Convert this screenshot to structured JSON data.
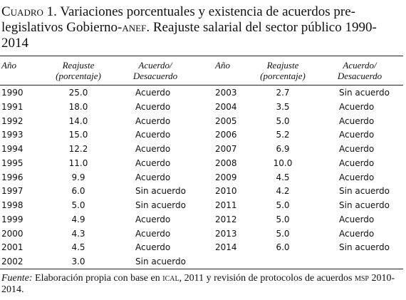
{
  "header": {
    "label": "Cuadro 1.",
    "title": "Variaciones porcentuales y existencia de acuerdos pre-legislativos Gobierno-anef. Reajuste salarial del sector público 1990-2014"
  },
  "table": {
    "columns": [
      [
        "Año"
      ],
      [
        "Reajuste",
        "(porcentaje)"
      ],
      [
        "Acuerdo/",
        "Desacuerdo"
      ],
      [
        "Año"
      ],
      [
        "Reajuste",
        "(porcentaje)"
      ],
      [
        "Acuerdo/",
        "Desacuerdo"
      ]
    ],
    "rows": [
      [
        "1990",
        "25.0",
        "Acuerdo",
        "2003",
        "2.7",
        "Sin acuerdo"
      ],
      [
        "1991",
        "18.0",
        "Acuerdo",
        "2004",
        "3.5",
        "Acuerdo"
      ],
      [
        "1992",
        "14.0",
        "Acuerdo",
        "2005",
        "5.0",
        "Acuerdo"
      ],
      [
        "1993",
        "15.0",
        "Acuerdo",
        "2006",
        "5.2",
        "Acuerdo"
      ],
      [
        "1994",
        "12.2",
        "Acuerdo",
        "2007",
        "6.9",
        "Acuerdo"
      ],
      [
        "1995",
        "11.0",
        "Acuerdo",
        "2008",
        "10.0",
        "Acuerdo"
      ],
      [
        "1996",
        "9.9",
        "Acuerdo",
        "2009",
        "4.5",
        "Acuerdo"
      ],
      [
        "1997",
        "6.0",
        "Sin acuerdo",
        "2010",
        "4.2",
        "Sin acuerdo"
      ],
      [
        "1998",
        "5.0",
        "Sin acuerdo",
        "2011",
        "5.0",
        "Sin acuerdo"
      ],
      [
        "1999",
        "4.9",
        "Acuerdo",
        "2012",
        "5.0",
        "Acuerdo"
      ],
      [
        "2000",
        "4.3",
        "Acuerdo",
        "2013",
        "5.0",
        "Acuerdo"
      ],
      [
        "2001",
        "4.5",
        "Acuerdo",
        "2014",
        "6.0",
        "Sin acuerdo"
      ],
      [
        "2002",
        "3.0",
        "Sin acuerdo"
      ]
    ]
  },
  "footer": {
    "label": "Fuente:",
    "text": "Elaboración propia con base en ical, 2011 y revisión de protocolos de acuerdos msp 2010-2014."
  }
}
